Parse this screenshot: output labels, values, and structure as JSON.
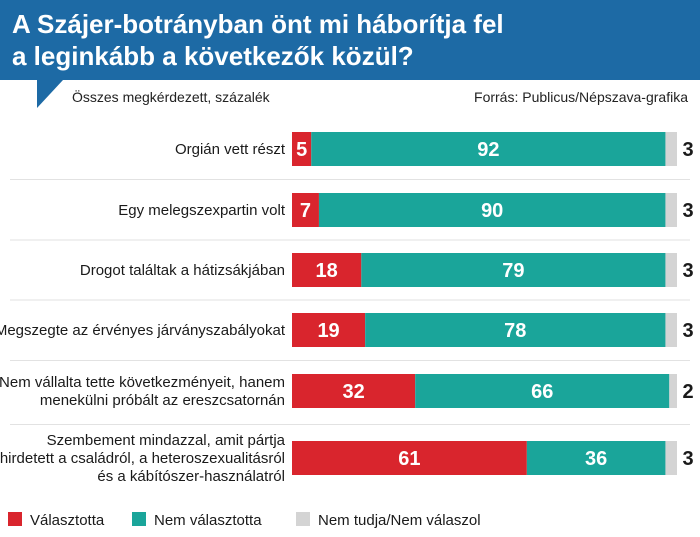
{
  "chart_data": {
    "type": "bar",
    "stacked": true,
    "orientation": "horizontal",
    "title_lines": [
      "A Szájer-botrányban önt mi háborítja fel",
      "a leginkább a következők közül?"
    ],
    "subtitle": "Összes megkérdezett, százalék",
    "source": "Forrás: Publicus/Népszava-grafika",
    "categories": [
      [
        "Orgián vett részt"
      ],
      [
        "Egy melegszexpartin volt"
      ],
      [
        "Drogot találtak a hátizsákjában"
      ],
      [
        "Megszegte az érvényes járványszabályokat"
      ],
      [
        "Nem vállalta tette következményeit, hanem",
        "menekülni próbált az ereszcsatornán"
      ],
      [
        "Szembement mindazzal, amit pártja",
        "hirdetett a családról, a heteroszexualitásról",
        "és a kábítószer-használatról"
      ]
    ],
    "series": [
      {
        "name": "Választotta",
        "color": "#d9252d",
        "values": [
          5,
          7,
          18,
          19,
          32,
          61
        ]
      },
      {
        "name": "Nem választotta",
        "color": "#1aa59a",
        "values": [
          92,
          90,
          79,
          78,
          66,
          36
        ]
      },
      {
        "name": "Nem tudja/Nem válaszol",
        "color": "#d4d4d4",
        "values": [
          3,
          3,
          3,
          3,
          2,
          3
        ]
      }
    ],
    "legend_position": "bottom",
    "xlim": [
      0,
      100
    ]
  }
}
